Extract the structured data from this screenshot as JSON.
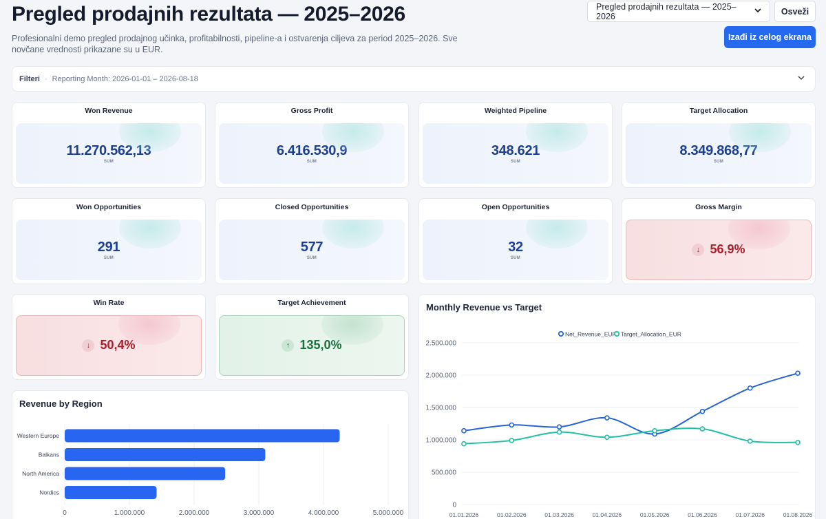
{
  "header": {
    "title": "Pregled prodajnih rezultata — 2025–2026",
    "description": "Profesionalni demo pregled prodajnog učinka, profitabilnosti, pipeline-a i ostvarenja ciljeva za period 2025–2026. Sve novčane vrednosti prikazane su u EUR.",
    "dashboard_select_value": "Pregled prodajnih rezultata — 2025–2026",
    "refresh_label": "Osveži",
    "fullscreen_label": "Izađi iz celog ekrana"
  },
  "filters": {
    "label": "Filteri",
    "separator": "·",
    "summary": "Reporting Month: 2026-01-01 – 2026-08-18"
  },
  "kpis": [
    {
      "title": "Won Revenue",
      "value": "11.270.562,13",
      "agg": "SUM"
    },
    {
      "title": "Gross Profit",
      "value": "6.416.530,9",
      "agg": "SUM"
    },
    {
      "title": "Weighted Pipeline",
      "value": "348.621",
      "agg": "SUM"
    },
    {
      "title": "Target Allocation",
      "value": "8.349.868,77",
      "agg": "SUM"
    },
    {
      "title": "Won Opportunities",
      "value": "291",
      "agg": "SUM"
    },
    {
      "title": "Closed Opportunities",
      "value": "577",
      "agg": "SUM"
    },
    {
      "title": "Open Opportunities",
      "value": "32",
      "agg": "SUM"
    }
  ],
  "pct_kpis": [
    {
      "title": "Gross Margin",
      "value": "56,9%",
      "direction": "down",
      "arrow": "↓",
      "status_color": "#a8202f"
    },
    {
      "title": "Win Rate",
      "value": "50,4%",
      "direction": "down",
      "arrow": "↓",
      "status_color": "#a8202f"
    },
    {
      "title": "Target Achievement",
      "value": "135,0%",
      "direction": "up",
      "arrow": "↑",
      "status_color": "#18733c"
    }
  ],
  "colors": {
    "accent": "#2569f0",
    "net_revenue_line": "#2563d6",
    "target_line": "#22bfa5",
    "bar": "#2866f2"
  },
  "chart_data": [
    {
      "type": "line",
      "title": "Monthly Revenue vs Target",
      "x": [
        "01.01.2026",
        "01.02.2026",
        "01.03.2026",
        "01.04.2026",
        "01.05.2026",
        "01.06.2026",
        "01.07.2026",
        "01.08.2026"
      ],
      "series": [
        {
          "name": "Net_Revenue_EUR",
          "values": [
            1140000,
            1230000,
            1200000,
            1340000,
            1090000,
            1440000,
            1800000,
            2030000
          ]
        },
        {
          "name": "Target_Allocation_EUR",
          "values": [
            940000,
            990000,
            1120000,
            1040000,
            1140000,
            1170000,
            980000,
            960000
          ]
        }
      ],
      "y_ticks": [
        "0",
        "500.000",
        "1.000.000",
        "1.500.000",
        "2.000.000",
        "2.500.000"
      ],
      "ylim": [
        0,
        2500000
      ],
      "legend": "top-center",
      "grid": true
    },
    {
      "type": "bar",
      "orientation": "horizontal",
      "title": "Revenue by Region",
      "categories": [
        "Western Europe",
        "Balkans",
        "North America",
        "Nordics"
      ],
      "values": [
        4250000,
        3100000,
        2480000,
        1420000
      ],
      "x_ticks": [
        "0",
        "1.000.000",
        "2.000.000",
        "3.000.000",
        "4.000.000",
        "5.000.000"
      ],
      "xlim": [
        0,
        5000000
      ],
      "grid": true
    }
  ]
}
